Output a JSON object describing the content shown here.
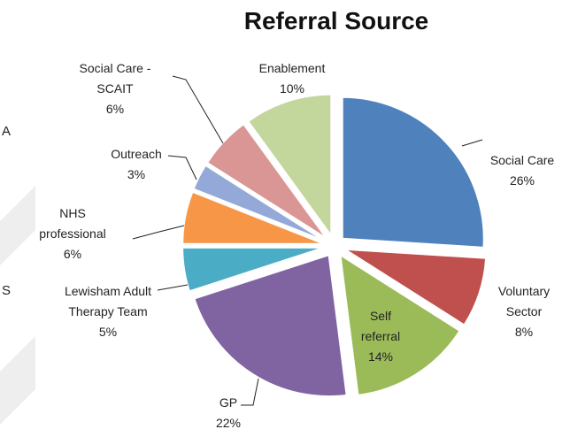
{
  "chart_data": {
    "type": "pie",
    "title": "Referral Source",
    "categories": [
      "Social Care",
      "Voluntary Sector",
      "Self referral",
      "GP",
      "Lewisham Adult Therapy Team",
      "NHS professional",
      "Outreach",
      "Social Care - SCAIT",
      "Enablement"
    ],
    "values": [
      26,
      8,
      14,
      22,
      5,
      6,
      3,
      6,
      10
    ],
    "value_labels": [
      "26%",
      "8%",
      "14%",
      "22%",
      "5%",
      "6%",
      "3%",
      "6%",
      "10%"
    ],
    "colors": [
      "#4f81bd",
      "#c0504d",
      "#9bbb59",
      "#8064a2",
      "#4bacc6",
      "#f79646",
      "#95a9d8",
      "#d99694",
      "#c3d69b"
    ]
  },
  "side_text": [
    "A",
    "S"
  ]
}
